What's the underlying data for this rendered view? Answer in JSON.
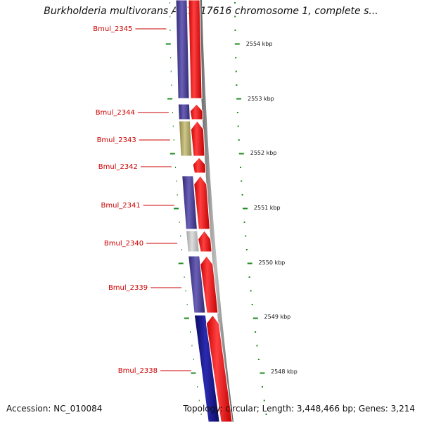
{
  "title": "Burkholderia multivorans ATCC 17616 chromosome 1, complete s...",
  "accession": "Accession: NC_010084",
  "summary": "Topology: circular; Length: 3,448,466 bp; Genes: 3,214",
  "colors": {
    "forward_strand": "#ff0000",
    "backbone": "#8a8a8a",
    "tick": "#1f8a1f",
    "label": "#cc0000",
    "blue_gene": "#4b4296",
    "dark_blue_gene": "#1a1a8c",
    "olive_gene": "#b5ad6a",
    "grey_gene": "#c0c0c0"
  },
  "genes": [
    {
      "name": "Bmul_2345",
      "reverse_color": "#4b4296"
    },
    {
      "name": "Bmul_2344",
      "reverse_color": "#4b4296"
    },
    {
      "name": "Bmul_2343",
      "reverse_color": "#b5ad6a"
    },
    {
      "name": "Bmul_2342",
      "reverse_color": null
    },
    {
      "name": "Bmul_2341",
      "reverse_color": "#4b4296"
    },
    {
      "name": "Bmul_2340",
      "reverse_color": "#c0c0c0"
    },
    {
      "name": "Bmul_2339",
      "reverse_color": "#4b4296"
    },
    {
      "name": "Bmul_2338",
      "reverse_color": "#1a1a8c"
    }
  ],
  "scale_labels": [
    "2554 kbp",
    "2553 kbp",
    "2552 kbp",
    "2551 kbp",
    "2550 kbp",
    "2549 kbp",
    "2548 kbp"
  ]
}
